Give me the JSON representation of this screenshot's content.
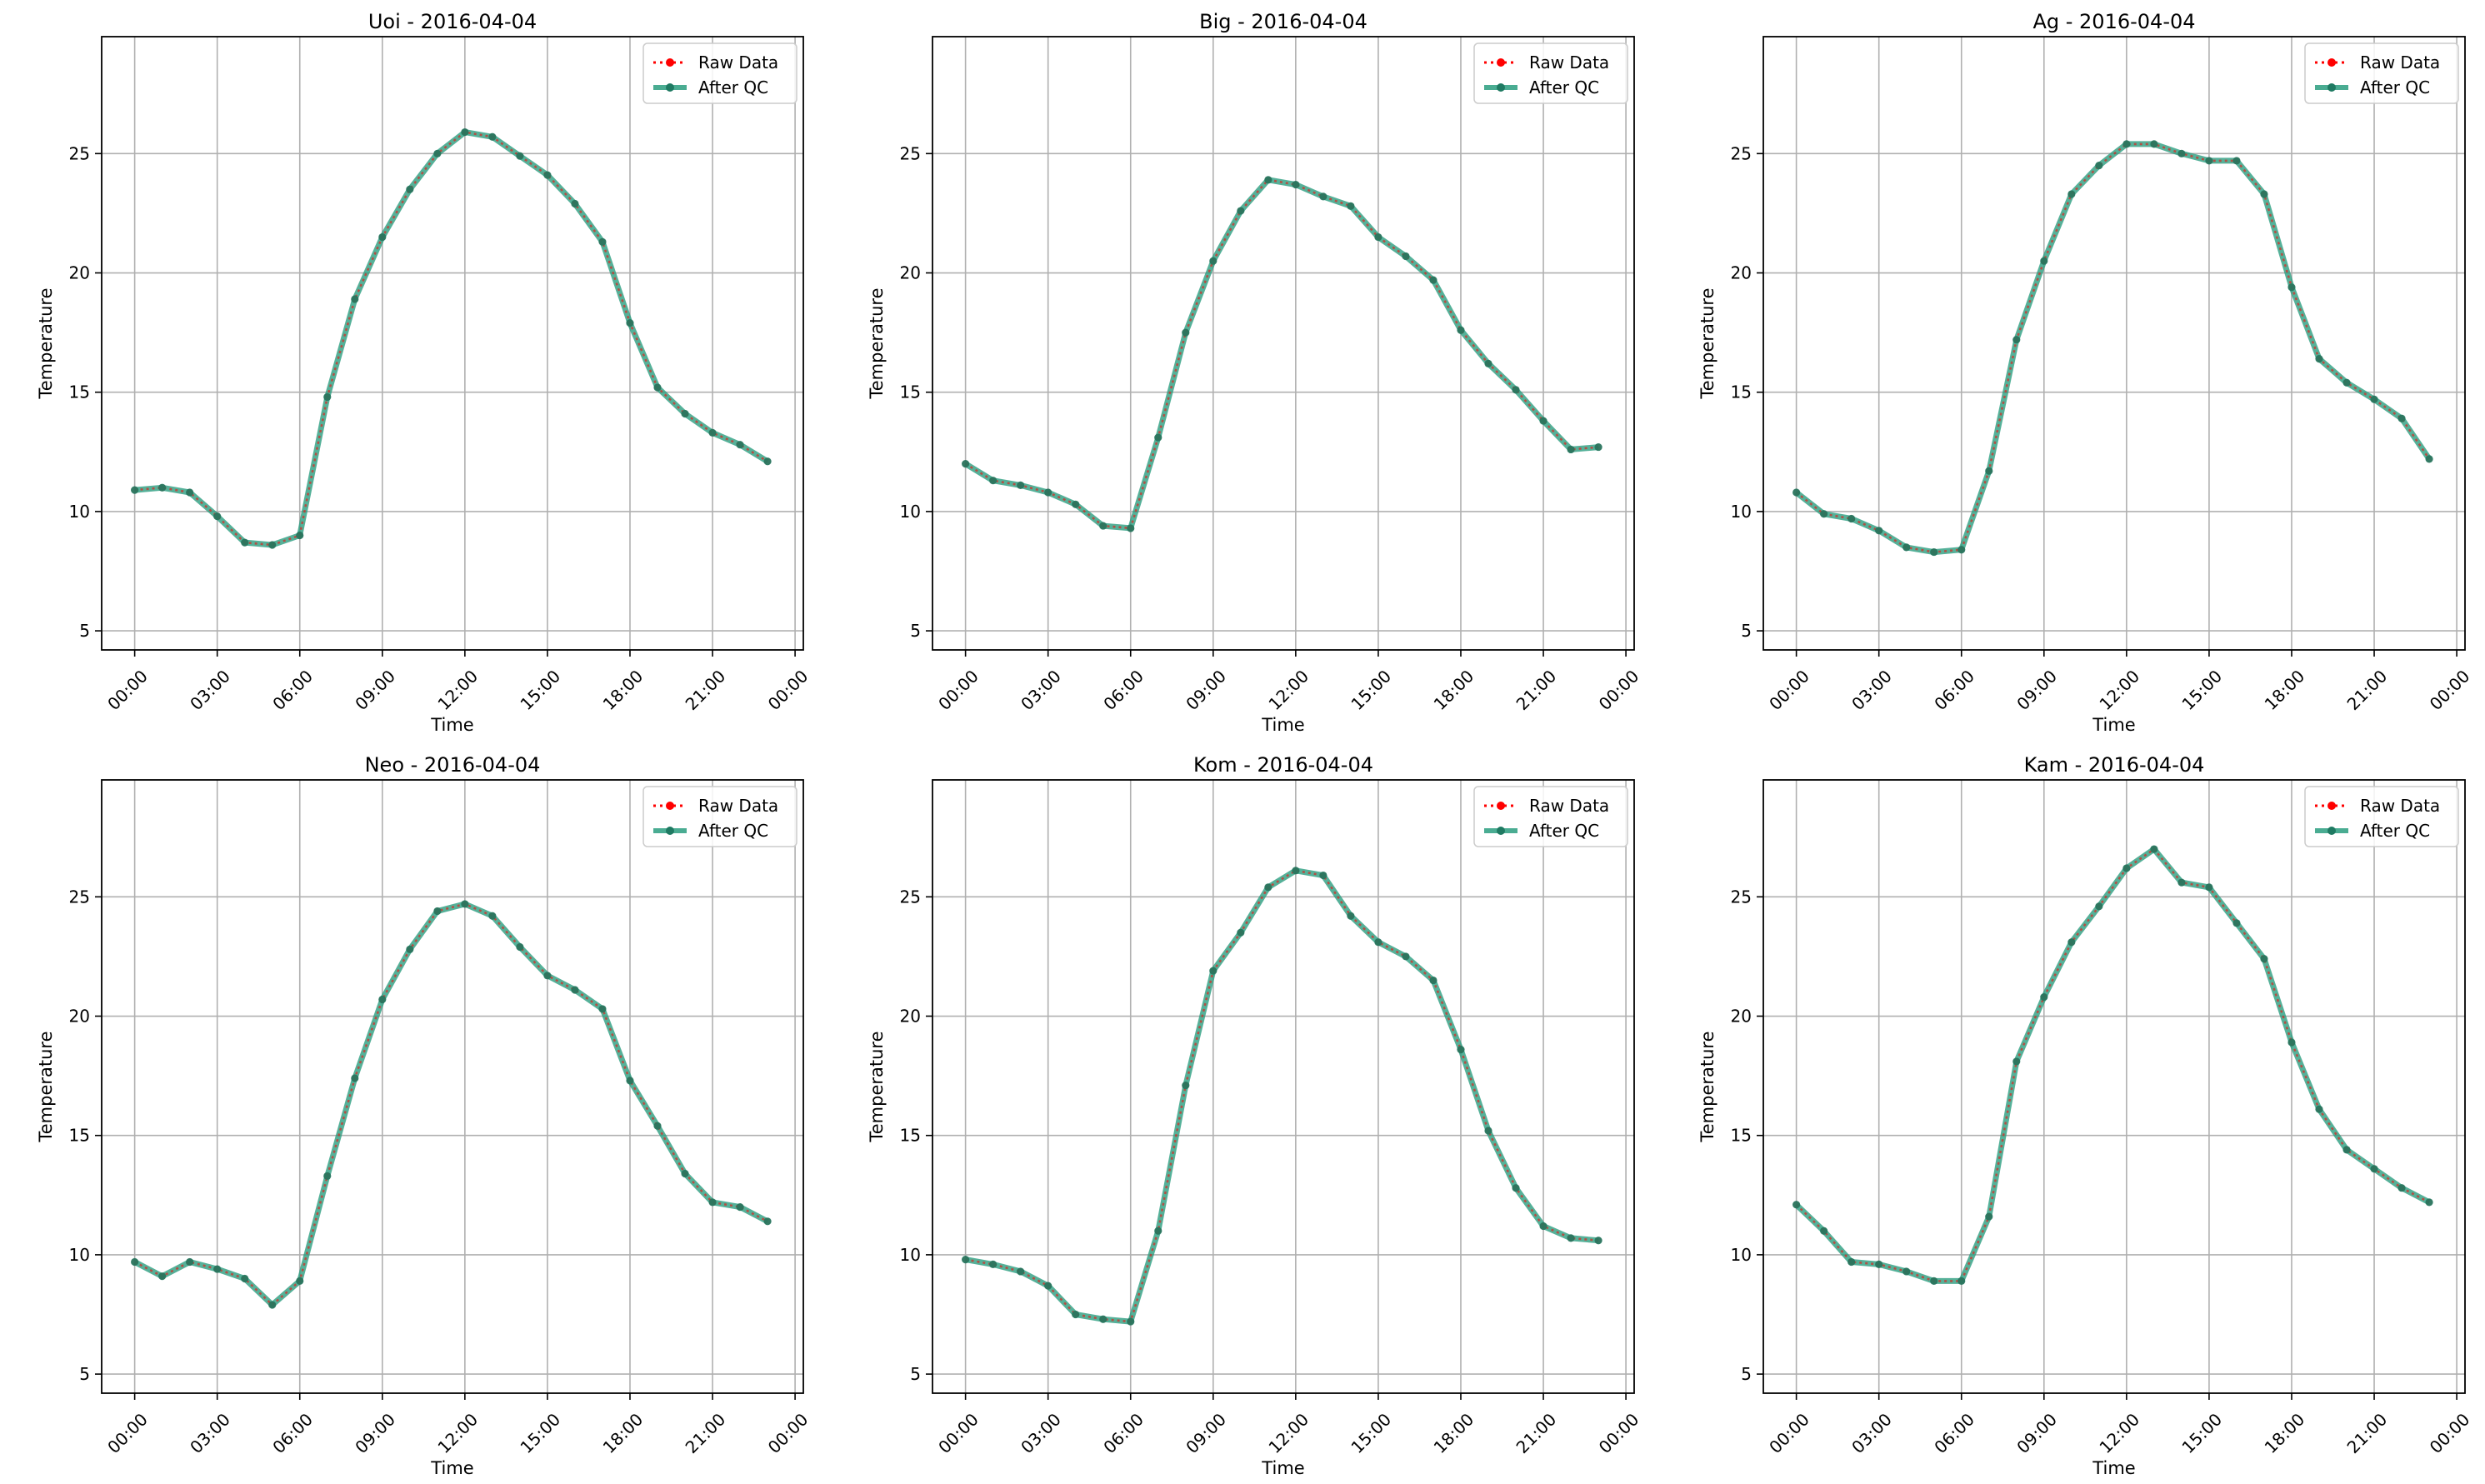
{
  "colors": {
    "raw": "#ff0000",
    "qc": "#2a9d7f",
    "qc_marker": "#1f7a62",
    "grid": "#b0b0b0",
    "axes": "#000000",
    "legend_border": "#cccccc"
  },
  "chart_data": [
    {
      "type": "line",
      "title": "Uoi - 2016-04-04",
      "xlabel": "Time",
      "ylabel": "Temperature",
      "x_ticks": [
        "00:00",
        "03:00",
        "06:00",
        "09:00",
        "12:00",
        "15:00",
        "18:00",
        "21:00",
        "00:00"
      ],
      "y_ticks": [
        5,
        10,
        15,
        20,
        25
      ],
      "xlim_hours": [
        -1.2,
        24.3
      ],
      "ylim": [
        4.2,
        29.9
      ],
      "legend": {
        "position": "top-right",
        "entries": [
          "Raw Data",
          "After QC"
        ]
      },
      "grid": true,
      "x": [
        0,
        1,
        2,
        3,
        4,
        5,
        6,
        7,
        8,
        9,
        10,
        11,
        12,
        13,
        14,
        15,
        16,
        17,
        18,
        19,
        20,
        21,
        22,
        23
      ],
      "series": [
        {
          "name": "Raw Data",
          "style": "dotted",
          "values": [
            10.9,
            11.0,
            10.8,
            9.8,
            8.7,
            8.6,
            9.0,
            14.8,
            18.9,
            21.5,
            23.5,
            25.0,
            25.9,
            25.7,
            24.9,
            24.1,
            22.9,
            21.3,
            17.9,
            15.2,
            14.1,
            13.3,
            12.8,
            12.1
          ]
        },
        {
          "name": "After QC",
          "style": "solid",
          "values": [
            10.9,
            11.0,
            10.8,
            9.8,
            8.7,
            8.6,
            9.0,
            14.8,
            18.9,
            21.5,
            23.5,
            25.0,
            25.9,
            25.7,
            24.9,
            24.1,
            22.9,
            21.3,
            17.9,
            15.2,
            14.1,
            13.3,
            12.8,
            12.1
          ]
        }
      ]
    },
    {
      "type": "line",
      "title": "Big - 2016-04-04",
      "xlabel": "Time",
      "ylabel": "Temperature",
      "x_ticks": [
        "00:00",
        "03:00",
        "06:00",
        "09:00",
        "12:00",
        "15:00",
        "18:00",
        "21:00",
        "00:00"
      ],
      "y_ticks": [
        5,
        10,
        15,
        20,
        25
      ],
      "xlim_hours": [
        -1.2,
        24.3
      ],
      "ylim": [
        4.2,
        29.9
      ],
      "legend": {
        "position": "top-right",
        "entries": [
          "Raw Data",
          "After QC"
        ]
      },
      "grid": true,
      "x": [
        0,
        1,
        2,
        3,
        4,
        5,
        6,
        7,
        8,
        9,
        10,
        11,
        12,
        13,
        14,
        15,
        16,
        17,
        18,
        19,
        20,
        21,
        22,
        23
      ],
      "series": [
        {
          "name": "Raw Data",
          "style": "dotted",
          "values": [
            12.0,
            11.3,
            11.1,
            10.8,
            10.3,
            9.4,
            9.3,
            13.1,
            17.5,
            20.5,
            22.6,
            23.9,
            23.7,
            23.2,
            22.8,
            21.5,
            20.7,
            19.7,
            17.6,
            16.2,
            15.1,
            13.8,
            12.6,
            12.7
          ]
        },
        {
          "name": "After QC",
          "style": "solid",
          "values": [
            12.0,
            11.3,
            11.1,
            10.8,
            10.3,
            9.4,
            9.3,
            13.1,
            17.5,
            20.5,
            22.6,
            23.9,
            23.7,
            23.2,
            22.8,
            21.5,
            20.7,
            19.7,
            17.6,
            16.2,
            15.1,
            13.8,
            12.6,
            12.7
          ]
        }
      ]
    },
    {
      "type": "line",
      "title": "Ag - 2016-04-04",
      "xlabel": "Time",
      "ylabel": "Temperature",
      "x_ticks": [
        "00:00",
        "03:00",
        "06:00",
        "09:00",
        "12:00",
        "15:00",
        "18:00",
        "21:00",
        "00:00"
      ],
      "y_ticks": [
        5,
        10,
        15,
        20,
        25
      ],
      "xlim_hours": [
        -1.2,
        24.3
      ],
      "ylim": [
        4.2,
        29.9
      ],
      "legend": {
        "position": "top-right",
        "entries": [
          "Raw Data",
          "After QC"
        ]
      },
      "grid": true,
      "x": [
        0,
        1,
        2,
        3,
        4,
        5,
        6,
        7,
        8,
        9,
        10,
        11,
        12,
        13,
        14,
        15,
        16,
        17,
        18,
        19,
        20,
        21,
        22,
        23
      ],
      "series": [
        {
          "name": "Raw Data",
          "style": "dotted",
          "values": [
            10.8,
            9.9,
            9.7,
            9.2,
            8.5,
            8.3,
            8.4,
            11.7,
            17.2,
            20.5,
            23.3,
            24.5,
            25.4,
            25.4,
            25.0,
            24.7,
            24.7,
            23.3,
            19.4,
            16.4,
            15.4,
            14.7,
            13.9,
            12.2
          ]
        },
        {
          "name": "After QC",
          "style": "solid",
          "values": [
            10.8,
            9.9,
            9.7,
            9.2,
            8.5,
            8.3,
            8.4,
            11.7,
            17.2,
            20.5,
            23.3,
            24.5,
            25.4,
            25.4,
            25.0,
            24.7,
            24.7,
            23.3,
            19.4,
            16.4,
            15.4,
            14.7,
            13.9,
            12.2
          ]
        }
      ]
    },
    {
      "type": "line",
      "title": "Neo - 2016-04-04",
      "xlabel": "Time",
      "ylabel": "Temperature",
      "x_ticks": [
        "00:00",
        "03:00",
        "06:00",
        "09:00",
        "12:00",
        "15:00",
        "18:00",
        "21:00",
        "00:00"
      ],
      "y_ticks": [
        5,
        10,
        15,
        20,
        25
      ],
      "xlim_hours": [
        -1.2,
        24.3
      ],
      "ylim": [
        4.2,
        29.9
      ],
      "legend": {
        "position": "top-right",
        "entries": [
          "Raw Data",
          "After QC"
        ]
      },
      "grid": true,
      "x": [
        0,
        1,
        2,
        3,
        4,
        5,
        6,
        7,
        8,
        9,
        10,
        11,
        12,
        13,
        14,
        15,
        16,
        17,
        18,
        19,
        20,
        21,
        22,
        23
      ],
      "series": [
        {
          "name": "Raw Data",
          "style": "dotted",
          "values": [
            9.7,
            9.1,
            9.7,
            9.4,
            9.0,
            7.9,
            8.9,
            13.3,
            17.4,
            20.7,
            22.8,
            24.4,
            24.7,
            24.2,
            22.9,
            21.7,
            21.1,
            20.3,
            17.3,
            15.4,
            13.4,
            12.2,
            12.0,
            11.4
          ]
        },
        {
          "name": "After QC",
          "style": "solid",
          "values": [
            9.7,
            9.1,
            9.7,
            9.4,
            9.0,
            7.9,
            8.9,
            13.3,
            17.4,
            20.7,
            22.8,
            24.4,
            24.7,
            24.2,
            22.9,
            21.7,
            21.1,
            20.3,
            17.3,
            15.4,
            13.4,
            12.2,
            12.0,
            11.4
          ]
        }
      ]
    },
    {
      "type": "line",
      "title": "Kom - 2016-04-04",
      "xlabel": "Time",
      "ylabel": "Temperature",
      "x_ticks": [
        "00:00",
        "03:00",
        "06:00",
        "09:00",
        "12:00",
        "15:00",
        "18:00",
        "21:00",
        "00:00"
      ],
      "y_ticks": [
        5,
        10,
        15,
        20,
        25
      ],
      "xlim_hours": [
        -1.2,
        24.3
      ],
      "ylim": [
        4.2,
        29.9
      ],
      "legend": {
        "position": "top-right",
        "entries": [
          "Raw Data",
          "After QC"
        ]
      },
      "grid": true,
      "x": [
        0,
        1,
        2,
        3,
        4,
        5,
        6,
        7,
        8,
        9,
        10,
        11,
        12,
        13,
        14,
        15,
        16,
        17,
        18,
        19,
        20,
        21,
        22,
        23
      ],
      "series": [
        {
          "name": "Raw Data",
          "style": "dotted",
          "values": [
            9.8,
            9.6,
            9.3,
            8.7,
            7.5,
            7.3,
            7.2,
            11.0,
            17.1,
            21.9,
            23.5,
            25.4,
            26.1,
            25.9,
            24.2,
            23.1,
            22.5,
            21.5,
            18.6,
            15.2,
            12.8,
            11.2,
            10.7,
            10.6
          ]
        },
        {
          "name": "After QC",
          "style": "solid",
          "values": [
            9.8,
            9.6,
            9.3,
            8.7,
            7.5,
            7.3,
            7.2,
            11.0,
            17.1,
            21.9,
            23.5,
            25.4,
            26.1,
            25.9,
            24.2,
            23.1,
            22.5,
            21.5,
            18.6,
            15.2,
            12.8,
            11.2,
            10.7,
            10.6
          ]
        }
      ]
    },
    {
      "type": "line",
      "title": "Kam - 2016-04-04",
      "xlabel": "Time",
      "ylabel": "Temperature",
      "x_ticks": [
        "00:00",
        "03:00",
        "06:00",
        "09:00",
        "12:00",
        "15:00",
        "18:00",
        "21:00",
        "00:00"
      ],
      "y_ticks": [
        5,
        10,
        15,
        20,
        25
      ],
      "xlim_hours": [
        -1.2,
        24.3
      ],
      "ylim": [
        4.2,
        29.9
      ],
      "legend": {
        "position": "top-right",
        "entries": [
          "Raw Data",
          "After QC"
        ]
      },
      "grid": true,
      "x": [
        0,
        1,
        2,
        3,
        4,
        5,
        6,
        7,
        8,
        9,
        10,
        11,
        12,
        13,
        14,
        15,
        16,
        17,
        18,
        19,
        20,
        21,
        22,
        23
      ],
      "series": [
        {
          "name": "Raw Data",
          "style": "dotted",
          "values": [
            12.1,
            11.0,
            9.7,
            9.6,
            9.3,
            8.9,
            8.9,
            11.6,
            18.1,
            20.8,
            23.1,
            24.6,
            26.2,
            27.0,
            25.6,
            25.4,
            23.9,
            22.4,
            18.9,
            16.1,
            14.4,
            13.6,
            12.8,
            12.2
          ]
        },
        {
          "name": "After QC",
          "style": "solid",
          "values": [
            12.1,
            11.0,
            9.7,
            9.6,
            9.3,
            8.9,
            8.9,
            11.6,
            18.1,
            20.8,
            23.1,
            24.6,
            26.2,
            27.0,
            25.6,
            25.4,
            23.9,
            22.4,
            18.9,
            16.1,
            14.4,
            13.6,
            12.8,
            12.2
          ]
        }
      ]
    }
  ]
}
